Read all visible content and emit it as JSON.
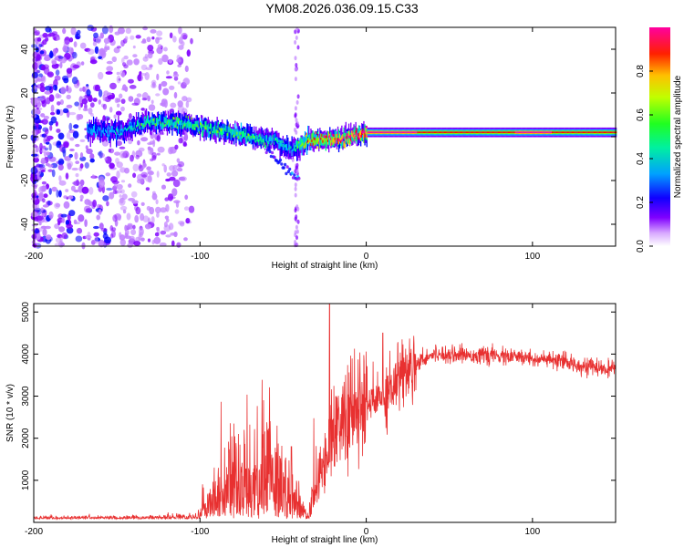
{
  "figure_title": "YM08.2026.036.09.15.C33",
  "chart_data": [
    {
      "type": "heatmap",
      "title": "YM08.2026.036.09.15.C33",
      "xlabel": "Height of straight line (km)",
      "ylabel": "Frequency (Hz)",
      "xlim": [
        -200,
        150
      ],
      "ylim": [
        -50,
        50
      ],
      "xticks": [
        -200,
        -100,
        0,
        100
      ],
      "yticks": [
        -40,
        -20,
        0,
        20,
        40
      ],
      "colorbar": {
        "label": "Normalized spectral amplitude",
        "range": [
          0,
          1
        ],
        "ticks": [
          0.0,
          0.2,
          0.4,
          0.6,
          0.8
        ],
        "colormap": [
          "#ffffff",
          "#c080ff",
          "#8000ff",
          "#0000ff",
          "#00c0ff",
          "#00ff80",
          "#80ff00",
          "#ffc000",
          "#ff0000",
          "#ff00a0"
        ]
      },
      "ridge": {
        "description_points_x": [
          -165,
          -150,
          -130,
          -110,
          -90,
          -70,
          -55,
          -45,
          -35,
          -20,
          -10,
          0,
          50,
          100,
          150
        ],
        "center_freq_hz": [
          3,
          2,
          7,
          6,
          3,
          0,
          -2,
          -6,
          -2,
          -1,
          0,
          2,
          2,
          2,
          2
        ],
        "peak_amplitude": [
          0.3,
          0.35,
          0.45,
          0.5,
          0.5,
          0.45,
          0.4,
          0.35,
          0.7,
          0.85,
          0.9,
          0.95,
          0.85,
          0.9,
          0.85
        ]
      }
    },
    {
      "type": "line",
      "xlabel": "Height of straight line (km)",
      "ylabel": "SNR (10 * v/v)",
      "xlim": [
        -200,
        150
      ],
      "ylim": [
        0,
        5200
      ],
      "xticks": [
        -200,
        -100,
        0,
        100
      ],
      "yticks": [
        1000,
        2000,
        3000,
        4000,
        5000
      ],
      "series": [
        {
          "name": "SNR",
          "color": "#e83030",
          "envelope_x": [
            -200,
            -150,
            -120,
            -100,
            -80,
            -60,
            -45,
            -35,
            -30,
            -25,
            -20,
            -15,
            -10,
            -5,
            0,
            10,
            20,
            30,
            40,
            50,
            80,
            100,
            120,
            150
          ],
          "envelope_y": [
            150,
            200,
            250,
            350,
            700,
            800,
            600,
            200,
            800,
            1500,
            2200,
            2400,
            2500,
            2700,
            2800,
            3000,
            3500,
            3800,
            4000,
            4000,
            3950,
            3900,
            3800,
            3600
          ],
          "spikes": [
            {
              "x": -22,
              "y": 5200
            },
            {
              "x": 10,
              "y": 4500
            },
            {
              "x": -45,
              "y": 1800
            }
          ]
        }
      ]
    }
  ]
}
